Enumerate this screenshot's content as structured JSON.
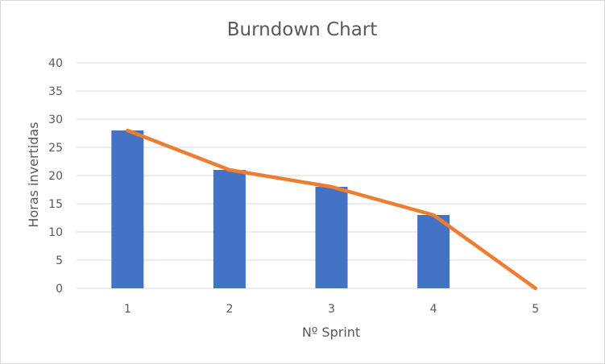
{
  "chart_data": {
    "type": "bar",
    "title": "Burndown Chart",
    "xlabel": "Nº Sprint",
    "ylabel": "Horas invertidas",
    "categories": [
      "1",
      "2",
      "3",
      "4",
      "5"
    ],
    "ylim": [
      0,
      40
    ],
    "yticks": [
      "0",
      "5",
      "10",
      "15",
      "20",
      "25",
      "30",
      "35",
      "40"
    ],
    "grid": true,
    "series": [
      {
        "kind": "bar",
        "values": [
          28,
          21,
          18,
          13,
          null
        ],
        "color": "#4472c4"
      },
      {
        "kind": "line",
        "values": [
          28,
          21,
          18,
          13,
          0
        ],
        "color": "#ed7d31"
      }
    ]
  }
}
